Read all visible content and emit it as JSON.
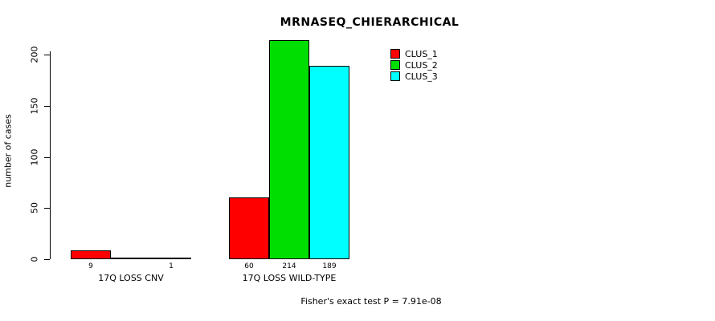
{
  "chart_data": {
    "type": "bar",
    "title": "MRNASEQ_CHIERARCHICAL",
    "ylabel": "number of cases",
    "xlabel": "",
    "ylim": [
      0,
      215
    ],
    "yticks": [
      0,
      50,
      100,
      150,
      200
    ],
    "grid": false,
    "legend_position": "top-right",
    "categories": [
      "17Q LOSS CNV",
      "17Q LOSS WILD-TYPE"
    ],
    "series": [
      {
        "name": "CLUS_1",
        "color": "#ff0000",
        "values": [
          9,
          60
        ]
      },
      {
        "name": "CLUS_2",
        "color": "#00dd00",
        "values": [
          0,
          214
        ]
      },
      {
        "name": "CLUS_3",
        "color": "#00ffff",
        "values": [
          1,
          189
        ]
      }
    ],
    "bar_value_labels": [
      [
        "9",
        "",
        "1"
      ],
      [
        "60",
        "214",
        "189"
      ]
    ],
    "annotation": "Fisher's exact test P = 7.91e-08"
  }
}
